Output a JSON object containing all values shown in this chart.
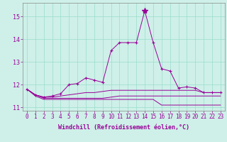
{
  "xlabel": "Windchill (Refroidissement éolien,°C)",
  "background_color": "#cef0e8",
  "line_color": "#990099",
  "grid_color": "#99ddcc",
  "xlim": [
    -0.5,
    23.5
  ],
  "ylim": [
    10.85,
    15.6
  ],
  "yticks": [
    11,
    12,
    13,
    14,
    15
  ],
  "xticks": [
    0,
    1,
    2,
    3,
    4,
    5,
    6,
    7,
    8,
    9,
    10,
    11,
    12,
    13,
    14,
    15,
    16,
    17,
    18,
    19,
    20,
    21,
    22,
    23
  ],
  "series": {
    "main": [
      11.8,
      11.55,
      11.45,
      11.5,
      11.6,
      12.0,
      12.05,
      12.3,
      12.2,
      12.1,
      13.5,
      13.85,
      13.85,
      13.85,
      15.25,
      13.85,
      12.7,
      12.6,
      11.85,
      11.9,
      11.85,
      11.65,
      11.65,
      11.65
    ],
    "line2": [
      11.8,
      11.55,
      11.45,
      11.45,
      11.5,
      11.55,
      11.6,
      11.65,
      11.65,
      11.7,
      11.75,
      11.75,
      11.75,
      11.75,
      11.75,
      11.75,
      11.75,
      11.75,
      11.75,
      11.75,
      11.75,
      11.65,
      11.65,
      11.65
    ],
    "line3": [
      11.8,
      11.55,
      11.4,
      11.4,
      11.4,
      11.4,
      11.4,
      11.4,
      11.4,
      11.4,
      11.45,
      11.5,
      11.5,
      11.5,
      11.5,
      11.5,
      11.5,
      11.5,
      11.5,
      11.5,
      11.5,
      11.5,
      11.5,
      11.5
    ],
    "line4": [
      11.8,
      11.5,
      11.35,
      11.35,
      11.35,
      11.35,
      11.35,
      11.35,
      11.35,
      11.35,
      11.35,
      11.35,
      11.35,
      11.35,
      11.35,
      11.35,
      11.1,
      11.1,
      11.1,
      11.1,
      11.1,
      11.1,
      11.1,
      11.1
    ]
  },
  "peak_x": 14,
  "xlabel_fontsize": 6,
  "tick_fontsize": 5.5
}
